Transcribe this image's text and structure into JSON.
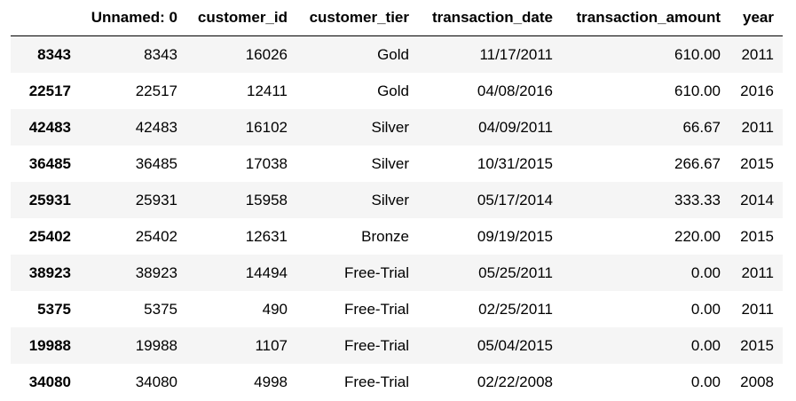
{
  "table": {
    "columns": [
      "",
      "Unnamed: 0",
      "customer_id",
      "customer_tier",
      "transaction_date",
      "transaction_amount",
      "year"
    ],
    "rows": [
      {
        "index": "8343",
        "unnamed": "8343",
        "customer_id": "16026",
        "customer_tier": "Gold",
        "transaction_date": "11/17/2011",
        "transaction_amount": "610.00",
        "year": "2011"
      },
      {
        "index": "22517",
        "unnamed": "22517",
        "customer_id": "12411",
        "customer_tier": "Gold",
        "transaction_date": "04/08/2016",
        "transaction_amount": "610.00",
        "year": "2016"
      },
      {
        "index": "42483",
        "unnamed": "42483",
        "customer_id": "16102",
        "customer_tier": "Silver",
        "transaction_date": "04/09/2011",
        "transaction_amount": "66.67",
        "year": "2011"
      },
      {
        "index": "36485",
        "unnamed": "36485",
        "customer_id": "17038",
        "customer_tier": "Silver",
        "transaction_date": "10/31/2015",
        "transaction_amount": "266.67",
        "year": "2015"
      },
      {
        "index": "25931",
        "unnamed": "25931",
        "customer_id": "15958",
        "customer_tier": "Silver",
        "transaction_date": "05/17/2014",
        "transaction_amount": "333.33",
        "year": "2014"
      },
      {
        "index": "25402",
        "unnamed": "25402",
        "customer_id": "12631",
        "customer_tier": "Bronze",
        "transaction_date": "09/19/2015",
        "transaction_amount": "220.00",
        "year": "2015"
      },
      {
        "index": "38923",
        "unnamed": "38923",
        "customer_id": "14494",
        "customer_tier": "Free-Trial",
        "transaction_date": "05/25/2011",
        "transaction_amount": "0.00",
        "year": "2011"
      },
      {
        "index": "5375",
        "unnamed": "5375",
        "customer_id": "490",
        "customer_tier": "Free-Trial",
        "transaction_date": "02/25/2011",
        "transaction_amount": "0.00",
        "year": "2011"
      },
      {
        "index": "19988",
        "unnamed": "19988",
        "customer_id": "1107",
        "customer_tier": "Free-Trial",
        "transaction_date": "05/04/2015",
        "transaction_amount": "0.00",
        "year": "2015"
      },
      {
        "index": "34080",
        "unnamed": "34080",
        "customer_id": "4998",
        "customer_tier": "Free-Trial",
        "transaction_date": "02/22/2008",
        "transaction_amount": "0.00",
        "year": "2008"
      }
    ]
  }
}
